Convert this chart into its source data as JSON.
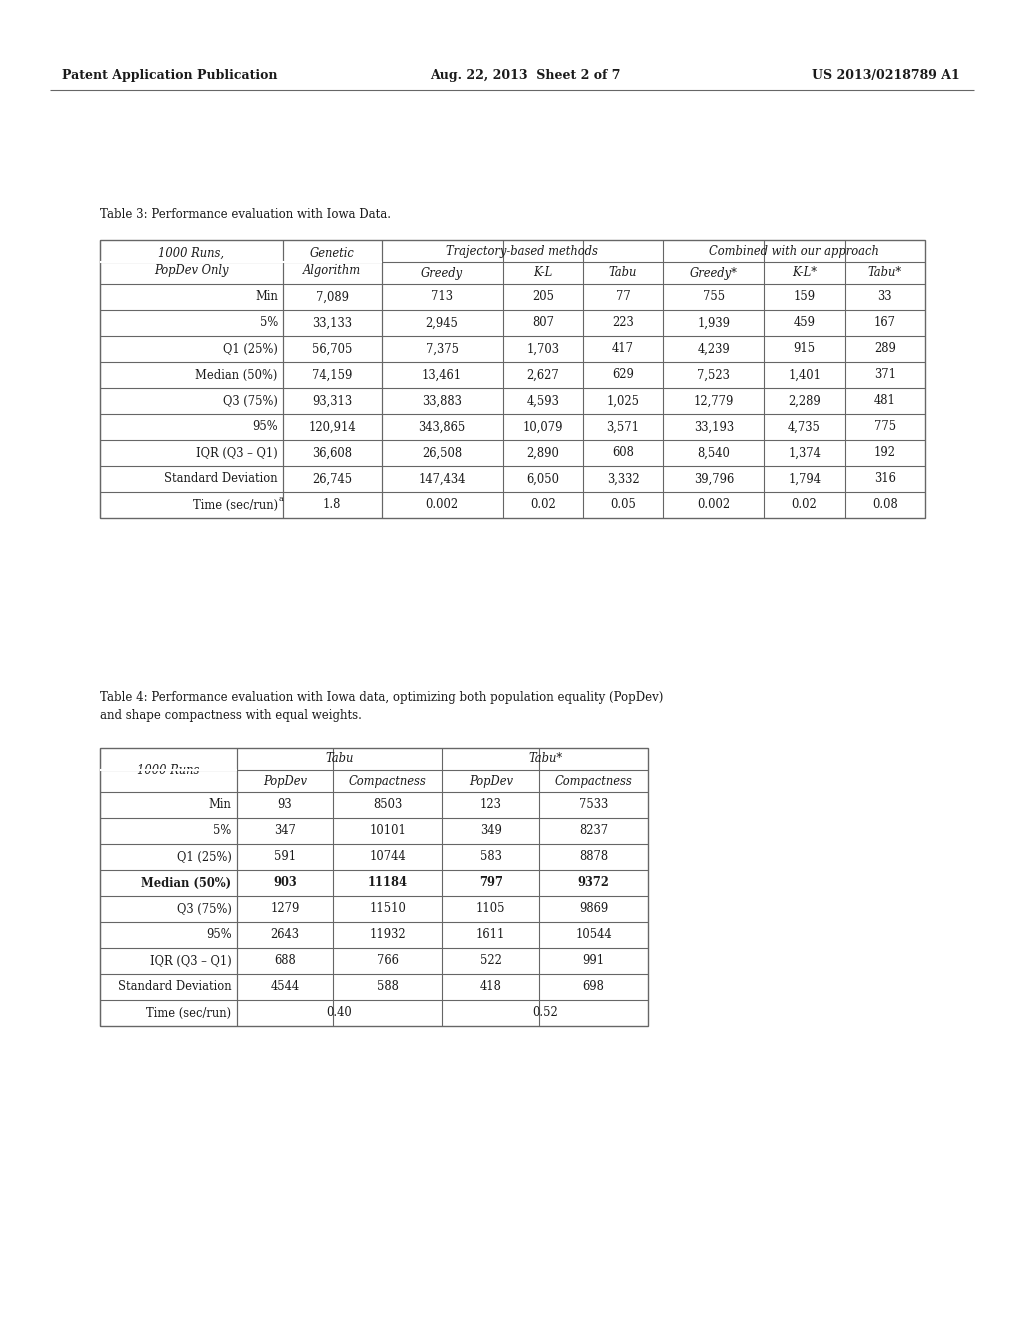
{
  "header_left": "Patent Application Publication",
  "header_center": "Aug. 22, 2013  Sheet 2 of 7",
  "header_right": "US 2013/0218789 A1",
  "table3_caption": "Table 3: Performance evaluation with Iowa Data.",
  "table3": {
    "rows": [
      [
        "Min",
        "7,089",
        "713",
        "205",
        "77",
        "755",
        "159",
        "33"
      ],
      [
        "5%",
        "33,133",
        "2,945",
        "807",
        "223",
        "1,939",
        "459",
        "167"
      ],
      [
        "Q1 (25%)",
        "56,705",
        "7,375",
        "1,703",
        "417",
        "4,239",
        "915",
        "289"
      ],
      [
        "Median (50%)",
        "74,159",
        "13,461",
        "2,627",
        "629",
        "7,523",
        "1,401",
        "371"
      ],
      [
        "Q3 (75%)",
        "93,313",
        "33,883",
        "4,593",
        "1,025",
        "12,779",
        "2,289",
        "481"
      ],
      [
        "95%",
        "120,914",
        "343,865",
        "10,079",
        "3,571",
        "33,193",
        "4,735",
        "775"
      ],
      [
        "IQR (Q3 – Q1)",
        "36,608",
        "26,508",
        "2,890",
        "608",
        "8,540",
        "1,374",
        "192"
      ],
      [
        "Standard Deviation",
        "26,745",
        "147,434",
        "6,050",
        "3,332",
        "39,796",
        "1,794",
        "316"
      ],
      [
        "Time (sec/run)",
        "1.8",
        "0.002",
        "0.02",
        "0.05",
        "0.002",
        "0.02",
        "0.08"
      ]
    ]
  },
  "table4_caption_line1": "Table 4: Performance evaluation with Iowa data, optimizing both population equality (PopDev)",
  "table4_caption_line2": "and shape compactness with equal weights.",
  "table4": {
    "rows": [
      [
        "Min",
        "93",
        "8503",
        "123",
        "7533"
      ],
      [
        "5%",
        "347",
        "10101",
        "349",
        "8237"
      ],
      [
        "Q1 (25%)",
        "591",
        "10744",
        "583",
        "8878"
      ],
      [
        "Median (50%)",
        "903",
        "11184",
        "797",
        "9372"
      ],
      [
        "Q3 (75%)",
        "1279",
        "11510",
        "1105",
        "9869"
      ],
      [
        "95%",
        "2643",
        "11932",
        "1611",
        "10544"
      ],
      [
        "IQR (Q3 – Q1)",
        "688",
        "766",
        "522",
        "991"
      ],
      [
        "Standard Deviation",
        "4544",
        "588",
        "418",
        "698"
      ],
      [
        "Time (sec/run)",
        "0.40",
        "",
        "0.52",
        ""
      ]
    ]
  },
  "bg_color": "#ffffff",
  "text_color": "#1a1a1a",
  "line_color": "#666666"
}
